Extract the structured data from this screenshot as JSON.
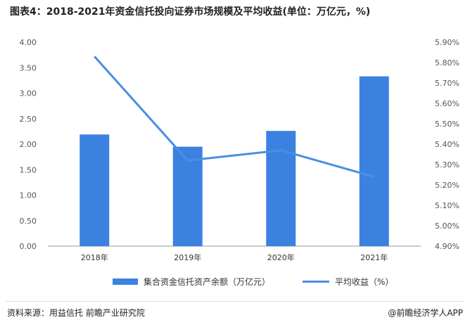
{
  "title": "图表4：2018-2021年资金信托投向证券市场规模及平均收益(单位：万亿元，%)",
  "source": "资料来源：用益信托 前瞻产业研究院",
  "brand": "@前瞻经济学人APP",
  "colors": {
    "bar": "#3b82e0",
    "line": "#4a8fe0"
  },
  "chart_data": {
    "type": "bar",
    "categories": [
      "2018年",
      "2019年",
      "2020年",
      "2021年"
    ],
    "series": [
      {
        "name": "集合资金信托资产余额（万亿元）",
        "type": "bar",
        "axis": "left",
        "values": [
          2.19,
          1.95,
          2.26,
          3.33
        ]
      },
      {
        "name": "平均收益（%）",
        "type": "line",
        "axis": "right",
        "values": [
          5.83,
          5.32,
          5.37,
          5.24
        ]
      }
    ],
    "left_axis": {
      "min": 0,
      "max": 4,
      "step": 0.5,
      "ticks": [
        "0.00",
        "0.50",
        "1.00",
        "1.50",
        "2.00",
        "2.50",
        "3.00",
        "3.50",
        "4.00"
      ]
    },
    "right_axis": {
      "min": 4.9,
      "max": 5.9,
      "step": 0.1,
      "ticks": [
        "4.90%",
        "5.00%",
        "5.10%",
        "5.20%",
        "5.30%",
        "5.40%",
        "5.50%",
        "5.60%",
        "5.70%",
        "5.80%",
        "5.90%"
      ]
    },
    "grid": false,
    "legend": "bottom"
  }
}
